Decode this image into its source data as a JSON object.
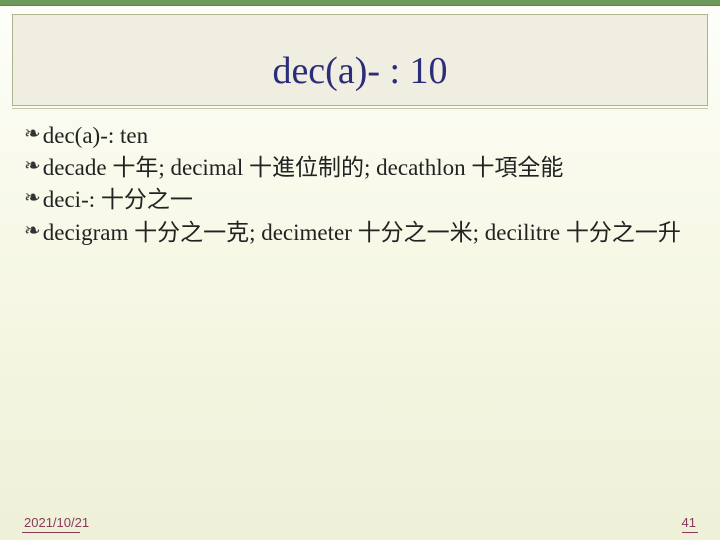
{
  "slide": {
    "title": "dec(a)- : 10",
    "bullets": [
      "dec(a)-: ten",
      "decade 十年; decimal 十進位制的; decathlon 十項全能",
      "deci-: 十分之一",
      "decigram 十分之一克; decimeter 十分之一米; decilitre 十分之一升"
    ],
    "bullet_glyph": "❧",
    "footer_date": "2021/10/21",
    "footer_page": "41",
    "colors": {
      "title": "#2c2c7a",
      "accent_top": "#6b9a5a",
      "dark_bar": "#5d5a4a",
      "footer_text": "#8a3a5a",
      "bg_top": "#fdfef9",
      "bg_bottom": "#eef0d8"
    },
    "fontsize": {
      "title": 38,
      "body": 23,
      "footer": 13
    }
  }
}
